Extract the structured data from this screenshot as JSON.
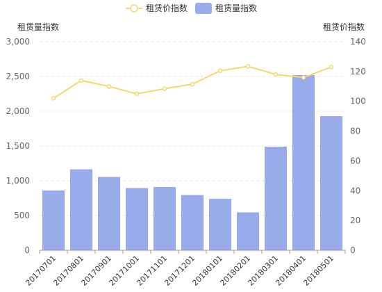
{
  "legend": {
    "line_label": "租赁价指数",
    "bar_label": "租赁量指数"
  },
  "axes": {
    "left_title": "租赁量指数",
    "right_title": "租赁价指数"
  },
  "chart_data": {
    "type": "bar",
    "categories": [
      "20170701",
      "20170801",
      "20170901",
      "20171001",
      "20171101",
      "20171201",
      "20180101",
      "20180201",
      "20180301",
      "20180401",
      "20180501"
    ],
    "series": [
      {
        "name": "租赁量指数",
        "type": "bar",
        "axis": "left",
        "color": "#9aabec",
        "values": [
          860,
          1165,
          1055,
          895,
          910,
          795,
          740,
          545,
          1490,
          2520,
          1930
        ]
      },
      {
        "name": "租赁价指数",
        "type": "line",
        "axis": "right",
        "color": "#f5d76e",
        "values": [
          102,
          114,
          110,
          105,
          108.5,
          111.5,
          120.5,
          123.5,
          118,
          116,
          123
        ]
      }
    ],
    "y_left": {
      "title": "租赁量指数",
      "range": [
        0,
        3000
      ],
      "ticks": [
        0,
        500,
        1000,
        1500,
        2000,
        2500,
        3000
      ],
      "tick_labels": [
        "0",
        "500",
        "1,000",
        "1,500",
        "2,000",
        "2,500",
        "3,000"
      ]
    },
    "y_right": {
      "title": "租赁价指数",
      "range": [
        0,
        140
      ],
      "ticks": [
        0,
        20,
        40,
        60,
        80,
        100,
        120,
        140
      ],
      "tick_labels": [
        "0",
        "20",
        "40",
        "60",
        "80",
        "100",
        "120",
        "140"
      ]
    },
    "grid": true,
    "legend_position": "top-center"
  }
}
